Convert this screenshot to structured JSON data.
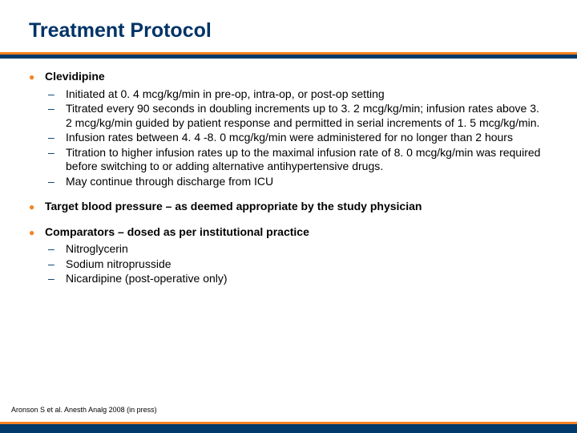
{
  "colors": {
    "navy": "#003a6a",
    "orange": "#f58220",
    "title": "#003366",
    "text": "#000000",
    "background": "#ffffff"
  },
  "title": "Treatment Protocol",
  "bullets": [
    {
      "label": "Clevidipine",
      "sub": [
        "Initiated at 0. 4 mcg/kg/min in pre-op, intra-op, or post-op setting",
        "Titrated every 90 seconds in doubling increments up to 3. 2 mcg/kg/min; infusion rates above 3. 2 mcg/kg/min guided by patient response and permitted in serial increments of 1. 5 mcg/kg/min.",
        "Infusion rates between 4. 4 -8. 0 mcg/kg/min were administered for no longer than 2 hours",
        "Titration to higher infusion rates up to the maximal infusion rate of 8. 0 mcg/kg/min was required before switching to or adding alternative antihypertensive drugs.",
        "May continue through discharge from ICU"
      ]
    },
    {
      "label": "Target blood pressure – as deemed appropriate by the study physician",
      "sub": []
    },
    {
      "label": "Comparators – dosed as per institutional practice",
      "sub": [
        "Nitroglycerin",
        "Sodium nitroprusside",
        "Nicardipine (post-operative only)"
      ]
    }
  ],
  "citation": "Aronson S et al. Anesth Analg 2008 (in press)"
}
